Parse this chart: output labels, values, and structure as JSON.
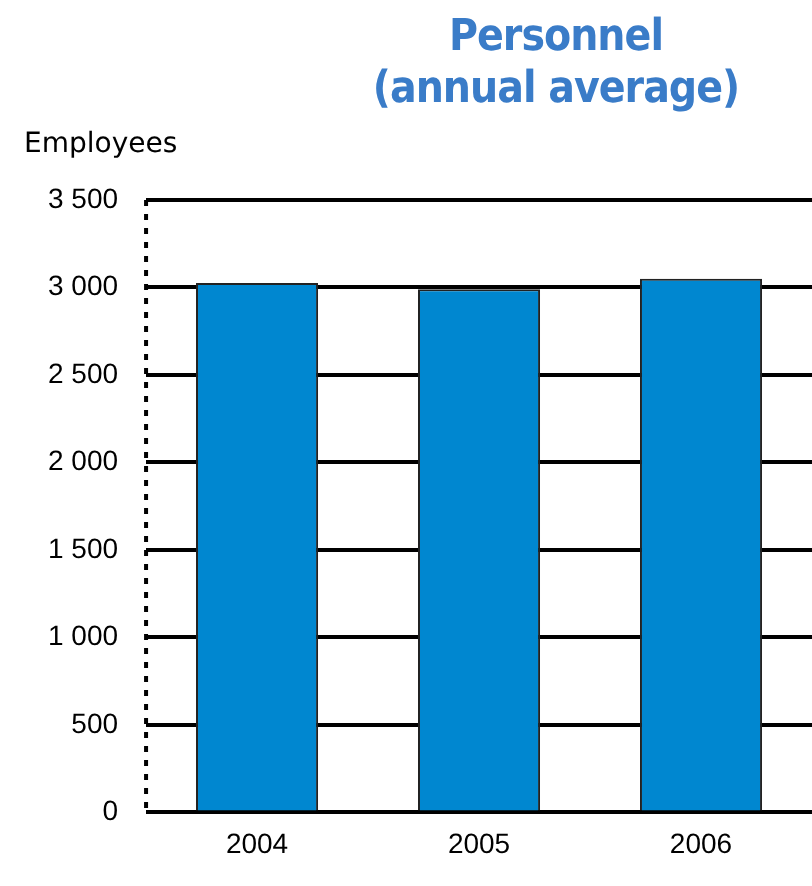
{
  "chart_data": {
    "type": "bar",
    "title": "Personnel\n(annual average)",
    "ylabel": "Employees",
    "categories": [
      "2004",
      "2005",
      "2006"
    ],
    "values": [
      3025,
      2990,
      3050
    ],
    "color": "#0087d0",
    "ylim": [
      0,
      3500
    ],
    "yticks": [
      {
        "value": 0,
        "label": "0"
      },
      {
        "value": 500,
        "label": "500"
      },
      {
        "value": 1000,
        "label": "1 000"
      },
      {
        "value": 1500,
        "label": "1 500"
      },
      {
        "value": 2000,
        "label": "2 000"
      },
      {
        "value": 2500,
        "label": "2 500"
      },
      {
        "value": 3000,
        "label": "3 000"
      },
      {
        "value": 3500,
        "label": "3 500"
      }
    ],
    "grid": "y",
    "legend": false
  }
}
